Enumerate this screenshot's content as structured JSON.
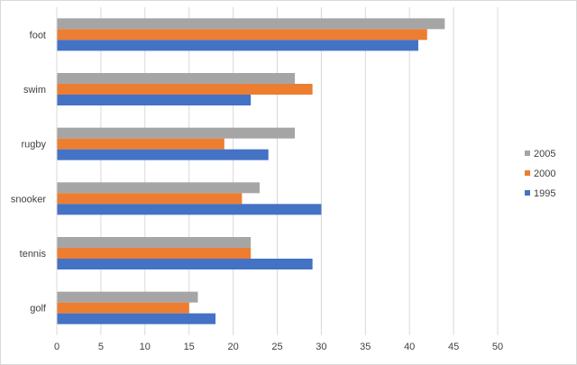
{
  "chart_data": {
    "type": "bar",
    "orientation": "horizontal",
    "categories": [
      "foot",
      "swim",
      "rugby",
      "snooker",
      "tennis",
      "golf"
    ],
    "series": [
      {
        "name": "2005",
        "color": "#a5a5a5",
        "values": [
          44,
          27,
          27,
          23,
          22,
          16
        ]
      },
      {
        "name": "2000",
        "color": "#ed7d31",
        "values": [
          42,
          29,
          19,
          21,
          22,
          15
        ]
      },
      {
        "name": "1995",
        "color": "#4472c4",
        "values": [
          41,
          22,
          24,
          30,
          29,
          18
        ]
      }
    ],
    "xlim": [
      0,
      50
    ],
    "xticks": [
      0,
      5,
      10,
      15,
      20,
      25,
      30,
      35,
      40,
      45,
      50
    ],
    "grid": true,
    "legend": "right",
    "title": "",
    "xlabel": "",
    "ylabel": ""
  }
}
